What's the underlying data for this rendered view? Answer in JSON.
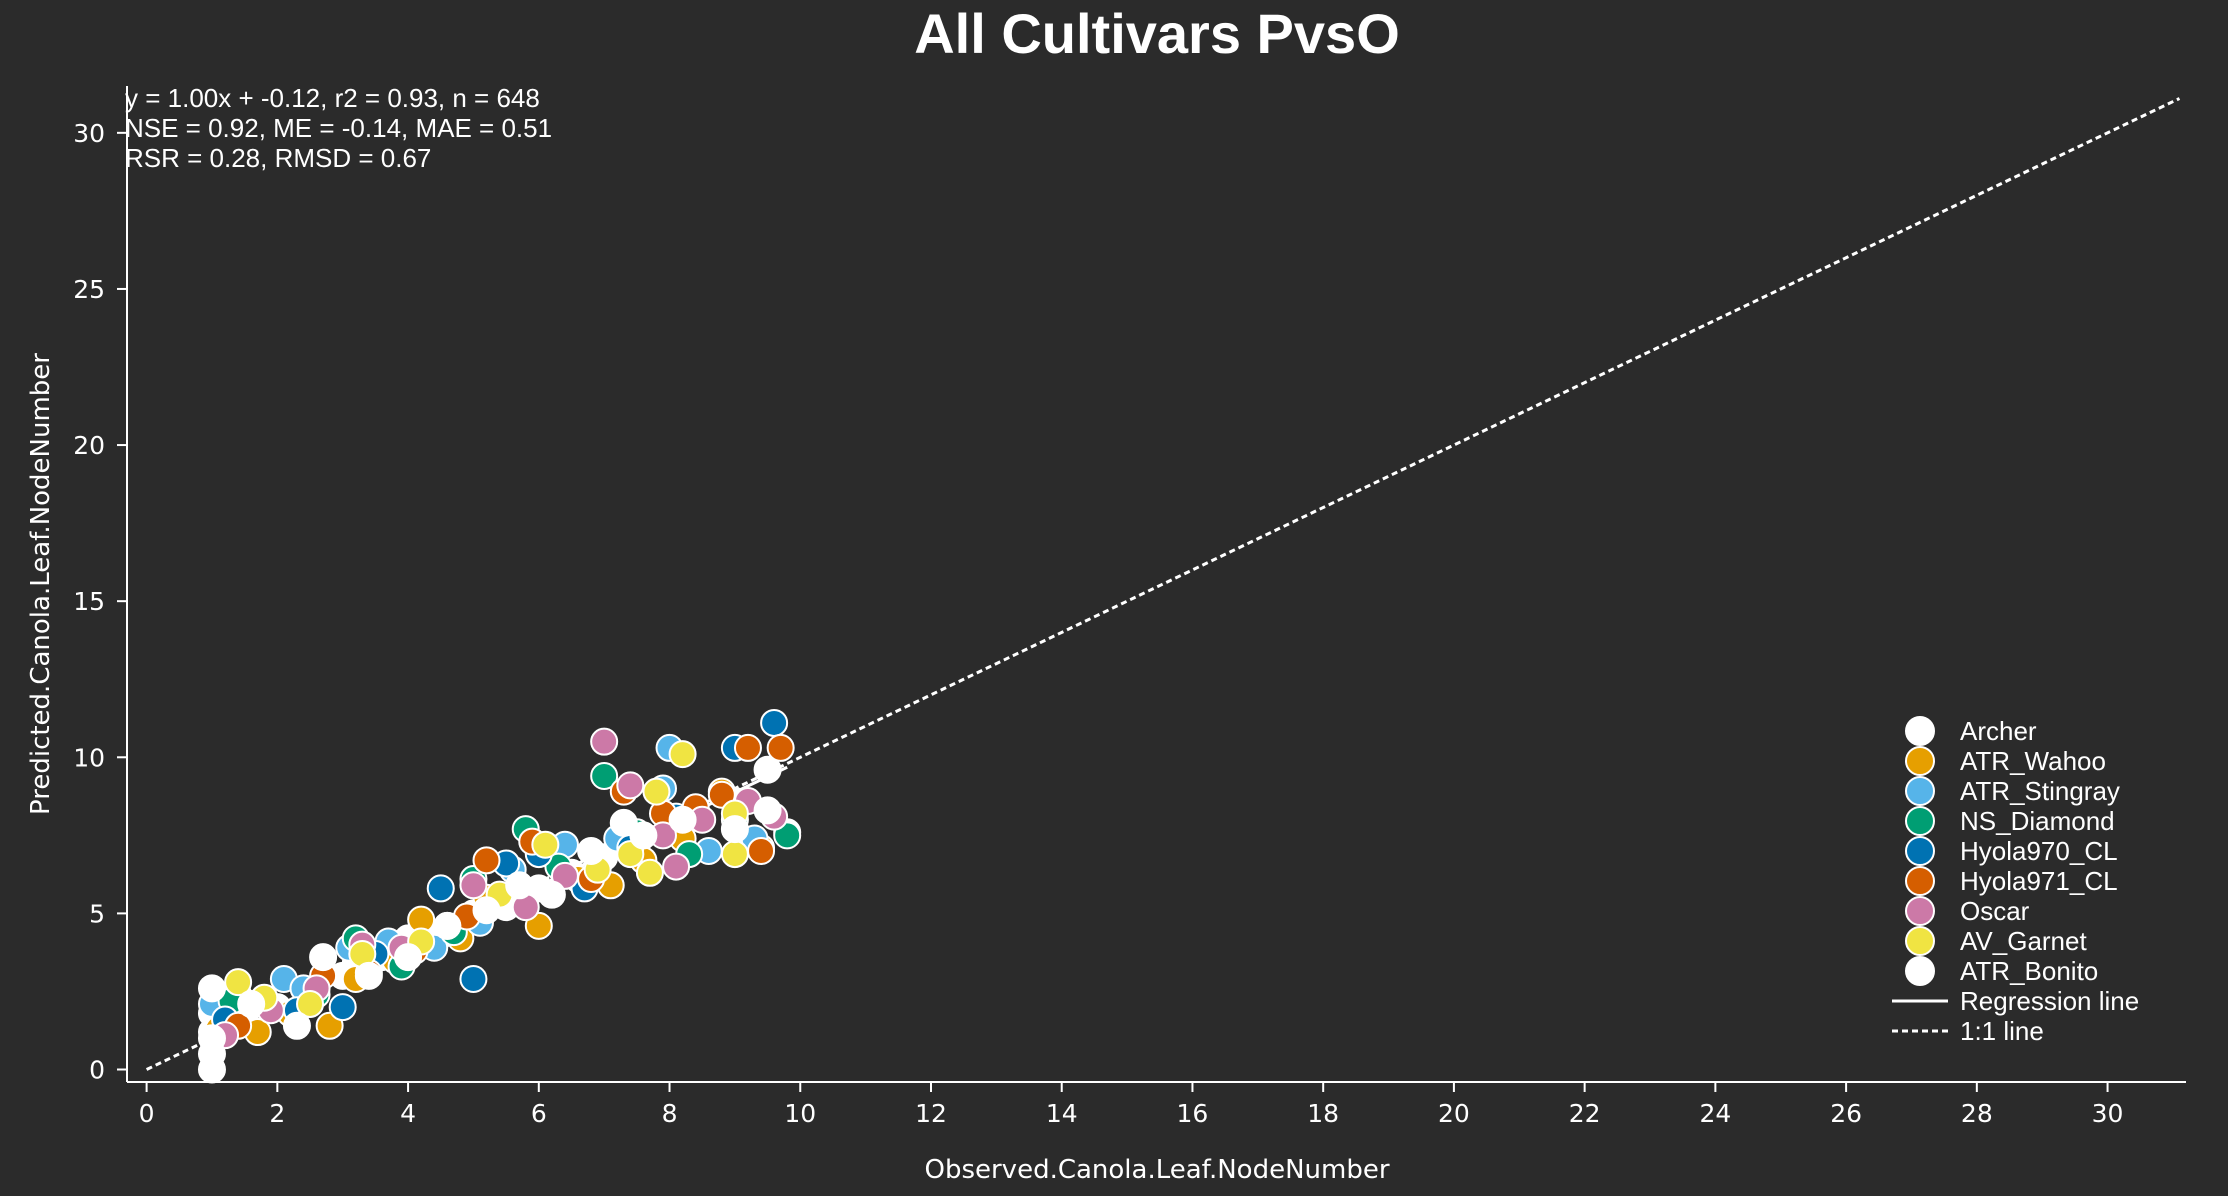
{
  "chart_data": {
    "type": "scatter",
    "title": "All Cultivars PvsO",
    "xlabel": "Observed.Canola.Leaf.NodeNumber",
    "ylabel": "Predicted.Canola.Leaf.NodeNumber",
    "xlim": [
      -0.3,
      31.2
    ],
    "ylim": [
      -0.4,
      31.5
    ],
    "xticks": [
      0,
      2,
      4,
      6,
      8,
      10,
      12,
      14,
      16,
      18,
      20,
      22,
      24,
      26,
      28,
      30
    ],
    "yticks": [
      0,
      5,
      10,
      15,
      20,
      25,
      30
    ],
    "grid": false,
    "legend_position": "lower-right",
    "stats_lines": [
      "y = 1.00x + -0.12, r2 = 0.93, n = 648",
      "NSE = 0.92, ME = -0.14, MAE = 0.51",
      "RSR = 0.28, RMSD = 0.67"
    ],
    "regression": {
      "slope": 1.0,
      "intercept": -0.12,
      "x_range": [
        1,
        9.8
      ],
      "label": "Regression line"
    },
    "one_to_one": {
      "x_range": [
        0,
        31.1
      ],
      "label": "1:1 line"
    },
    "series": [
      {
        "name": "Archer",
        "color": "#ffffff",
        "points": [
          [
            1,
            1.2
          ],
          [
            1,
            1.8
          ],
          [
            1.2,
            1.5
          ],
          [
            1.5,
            1.6
          ],
          [
            2,
            2
          ],
          [
            2.5,
            2.5
          ],
          [
            3,
            3
          ],
          [
            3.2,
            3.4
          ],
          [
            3.6,
            3.6
          ],
          [
            4,
            4.2
          ],
          [
            4.5,
            4.3
          ],
          [
            5,
            5
          ],
          [
            5.5,
            5.2
          ],
          [
            6,
            5.8
          ],
          [
            6.5,
            6.3
          ],
          [
            7,
            6.8
          ],
          [
            7.5,
            7.2
          ],
          [
            8,
            7.8
          ],
          [
            9,
            8.6
          ],
          [
            9.5,
            9.6
          ],
          [
            9.8,
            7.6
          ]
        ]
      },
      {
        "name": "ATR_Wahoo",
        "color": "#e69f00",
        "points": [
          [
            1.1,
            1.3
          ],
          [
            1.7,
            1.2
          ],
          [
            2.2,
            1.8
          ],
          [
            2.8,
            1.4
          ],
          [
            3.2,
            2.9
          ],
          [
            3.8,
            3.5
          ],
          [
            4.2,
            4.8
          ],
          [
            4.8,
            4.2
          ],
          [
            5.2,
            5.5
          ],
          [
            6,
            4.6
          ],
          [
            6.6,
            6.1
          ],
          [
            7.1,
            5.9
          ],
          [
            7.6,
            6.7
          ],
          [
            8.2,
            7.4
          ],
          [
            8.8,
            8.9
          ],
          [
            9.4,
            7.1
          ]
        ]
      },
      {
        "name": "ATR_Stingray",
        "color": "#56b4e9",
        "points": [
          [
            1,
            2.1
          ],
          [
            1.4,
            2.4
          ],
          [
            2.1,
            2.9
          ],
          [
            2.4,
            2.6
          ],
          [
            3.1,
            3.9
          ],
          [
            3.7,
            4.1
          ],
          [
            4.4,
            3.9
          ],
          [
            5.1,
            4.7
          ],
          [
            5.6,
            6.4
          ],
          [
            6.4,
            7.2
          ],
          [
            7.2,
            7.4
          ],
          [
            7.9,
            9
          ],
          [
            8,
            10.3
          ],
          [
            8.6,
            7
          ],
          [
            9.3,
            7.4
          ]
        ]
      },
      {
        "name": "NS_Diamond",
        "color": "#009e73",
        "points": [
          [
            1.3,
            2.2
          ],
          [
            2.6,
            2.4
          ],
          [
            3.2,
            4.2
          ],
          [
            3.9,
            3.3
          ],
          [
            4.7,
            4.4
          ],
          [
            5,
            6.1
          ],
          [
            5.8,
            7.7
          ],
          [
            6.3,
            6.5
          ],
          [
            7,
            9.4
          ],
          [
            7.5,
            7.6
          ],
          [
            8.3,
            6.9
          ],
          [
            9,
            8
          ],
          [
            9.8,
            7.5
          ]
        ]
      },
      {
        "name": "Hyola970_CL",
        "color": "#0072b2",
        "points": [
          [
            1.2,
            1.6
          ],
          [
            2.3,
            1.9
          ],
          [
            3,
            2
          ],
          [
            3.5,
            3.7
          ],
          [
            4.5,
            5.8
          ],
          [
            5,
            2.9
          ],
          [
            5.5,
            6.6
          ],
          [
            6,
            6.9
          ],
          [
            6.7,
            5.8
          ],
          [
            7.4,
            7.1
          ],
          [
            8.1,
            8.1
          ],
          [
            9,
            10.3
          ],
          [
            9.6,
            11.1
          ]
        ]
      },
      {
        "name": "Hyola971_CL",
        "color": "#d55e00",
        "points": [
          [
            1.4,
            1.4
          ],
          [
            2.7,
            3
          ],
          [
            3.4,
            3.1
          ],
          [
            4.1,
            3.8
          ],
          [
            4.9,
            4.9
          ],
          [
            5.2,
            6.7
          ],
          [
            5.9,
            7.3
          ],
          [
            6.8,
            6.1
          ],
          [
            7.3,
            8.9
          ],
          [
            7.9,
            8.2
          ],
          [
            8.4,
            8.4
          ],
          [
            8.8,
            8.8
          ],
          [
            9.2,
            10.3
          ],
          [
            9.4,
            7
          ],
          [
            9.7,
            10.3
          ]
        ]
      },
      {
        "name": "Oscar",
        "color": "#cc79a7",
        "points": [
          [
            1.2,
            1.1
          ],
          [
            1.9,
            1.9
          ],
          [
            2.6,
            2.6
          ],
          [
            3.3,
            4
          ],
          [
            3.9,
            3.9
          ],
          [
            4.6,
            4.6
          ],
          [
            5,
            5.9
          ],
          [
            5.8,
            5.2
          ],
          [
            6.4,
            6.2
          ],
          [
            7,
            10.5
          ],
          [
            7.4,
            9.1
          ],
          [
            7.9,
            7.5
          ],
          [
            8.1,
            6.5
          ],
          [
            8.5,
            8
          ],
          [
            9.2,
            8.6
          ],
          [
            9.6,
            8.1
          ]
        ]
      },
      {
        "name": "AV_Garnet",
        "color": "#f0e442",
        "points": [
          [
            1.4,
            2.8
          ],
          [
            1.8,
            2.3
          ],
          [
            2.5,
            2.1
          ],
          [
            3.3,
            3.7
          ],
          [
            4.2,
            4.1
          ],
          [
            5.4,
            5.6
          ],
          [
            6.1,
            7.2
          ],
          [
            6.9,
            6.4
          ],
          [
            7.4,
            6.9
          ],
          [
            7.7,
            6.3
          ],
          [
            7.8,
            8.9
          ],
          [
            8.2,
            10.1
          ],
          [
            9,
            6.9
          ],
          [
            9,
            8.2
          ]
        ]
      },
      {
        "name": "ATR_Bonito",
        "color": "#ffffff",
        "points": [
          [
            1,
            0
          ],
          [
            1,
            0.5
          ],
          [
            1,
            1
          ],
          [
            1,
            2.6
          ],
          [
            1.6,
            2.1
          ],
          [
            2.3,
            1.4
          ],
          [
            2.7,
            3.6
          ],
          [
            3.4,
            3
          ],
          [
            4,
            3.6
          ],
          [
            4.6,
            4.6
          ],
          [
            5.2,
            5.1
          ],
          [
            5.7,
            5.9
          ],
          [
            6.2,
            5.6
          ],
          [
            6.8,
            7
          ],
          [
            7.3,
            7.9
          ],
          [
            7.6,
            7.5
          ],
          [
            8.2,
            8
          ],
          [
            9,
            7.7
          ],
          [
            9.5,
            8.3
          ]
        ]
      }
    ]
  }
}
